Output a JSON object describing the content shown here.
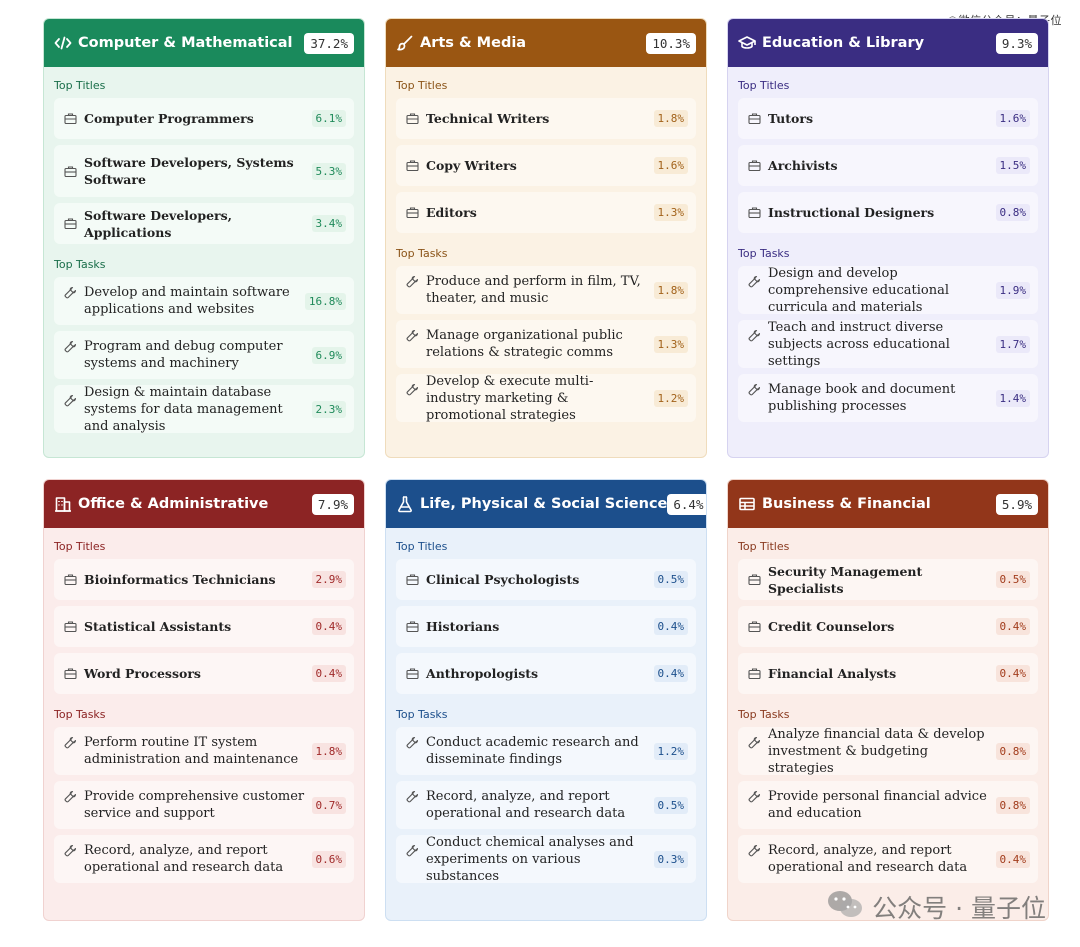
{
  "watermark": {
    "top": "©微信公众号：量子位",
    "bottom": "公众号 · 量子位"
  },
  "labels": {
    "top_titles": "Top Titles",
    "top_tasks": "Top Tasks"
  },
  "cards": [
    {
      "theme": "green",
      "icon": "code-icon",
      "title": "Computer & Mathematical",
      "pct": "37.2%",
      "titles": [
        {
          "label": "Computer Programmers",
          "pct": "6.1%"
        },
        {
          "label": "Software Developers, Systems Software",
          "pct": "5.3%"
        },
        {
          "label": "Software Developers, Applications",
          "pct": "3.4%"
        }
      ],
      "tasks": [
        {
          "label": "Develop and maintain software applications and websites",
          "pct": "16.8%"
        },
        {
          "label": "Program and debug computer systems and machinery",
          "pct": "6.9%"
        },
        {
          "label": "Design & maintain database systems for data management and analysis",
          "pct": "2.3%"
        }
      ]
    },
    {
      "theme": "orange",
      "icon": "brush-icon",
      "title": "Arts & Media",
      "pct": "10.3%",
      "titles": [
        {
          "label": "Technical Writers",
          "pct": "1.8%"
        },
        {
          "label": "Copy Writers",
          "pct": "1.6%"
        },
        {
          "label": "Editors",
          "pct": "1.3%"
        }
      ],
      "tasks": [
        {
          "label": "Produce and perform in film, TV, theater, and music",
          "pct": "1.8%"
        },
        {
          "label": "Manage organizational public relations & strategic comms",
          "pct": "1.3%"
        },
        {
          "label": "Develop & execute multi-industry marketing & promotional strategies",
          "pct": "1.2%"
        }
      ]
    },
    {
      "theme": "purple",
      "icon": "graduation-cap-icon",
      "title": "Education & Library",
      "pct": "9.3%",
      "titles": [
        {
          "label": "Tutors",
          "pct": "1.6%"
        },
        {
          "label": "Archivists",
          "pct": "1.5%"
        },
        {
          "label": "Instructional Designers",
          "pct": "0.8%"
        }
      ],
      "tasks": [
        {
          "label": "Design and develop comprehensive educational curricula and materials",
          "pct": "1.9%"
        },
        {
          "label": "Teach and instruct diverse subjects across educational settings",
          "pct": "1.7%"
        },
        {
          "label": "Manage book and document publishing processes",
          "pct": "1.4%"
        }
      ]
    },
    {
      "theme": "red",
      "icon": "building-icon",
      "title": "Office & Administrative",
      "pct": "7.9%",
      "titles": [
        {
          "label": "Bioinformatics Technicians",
          "pct": "2.9%"
        },
        {
          "label": "Statistical Assistants",
          "pct": "0.4%"
        },
        {
          "label": "Word Processors",
          "pct": "0.4%"
        }
      ],
      "tasks": [
        {
          "label": "Perform routine IT system administration and maintenance",
          "pct": "1.8%"
        },
        {
          "label": "Provide comprehensive customer service and support",
          "pct": "0.7%"
        },
        {
          "label": "Record, analyze, and report operational and research data",
          "pct": "0.6%"
        }
      ]
    },
    {
      "theme": "blue",
      "icon": "flask-icon",
      "title": "Life, Physical & Social Science",
      "pct": "6.4%",
      "titles": [
        {
          "label": "Clinical Psychologists",
          "pct": "0.5%"
        },
        {
          "label": "Historians",
          "pct": "0.4%"
        },
        {
          "label": "Anthropologists",
          "pct": "0.4%"
        }
      ],
      "tasks": [
        {
          "label": "Conduct academic research and disseminate findings",
          "pct": "1.2%"
        },
        {
          "label": "Record, analyze, and report operational and research data",
          "pct": "0.5%"
        },
        {
          "label": "Conduct chemical analyses and experiments on various substances",
          "pct": "0.3%"
        }
      ]
    },
    {
      "theme": "rust",
      "icon": "ledger-icon",
      "title": "Business & Financial",
      "pct": "5.9%",
      "titles": [
        {
          "label": "Security Management Specialists",
          "pct": "0.5%"
        },
        {
          "label": "Credit Counselors",
          "pct": "0.4%"
        },
        {
          "label": "Financial Analysts",
          "pct": "0.4%"
        }
      ],
      "tasks": [
        {
          "label": "Analyze financial data & develop investment & budgeting strategies",
          "pct": "0.8%"
        },
        {
          "label": "Provide personal financial advice and education",
          "pct": "0.8%"
        },
        {
          "label": "Record, analyze, and report operational and research data",
          "pct": "0.4%"
        }
      ]
    }
  ]
}
